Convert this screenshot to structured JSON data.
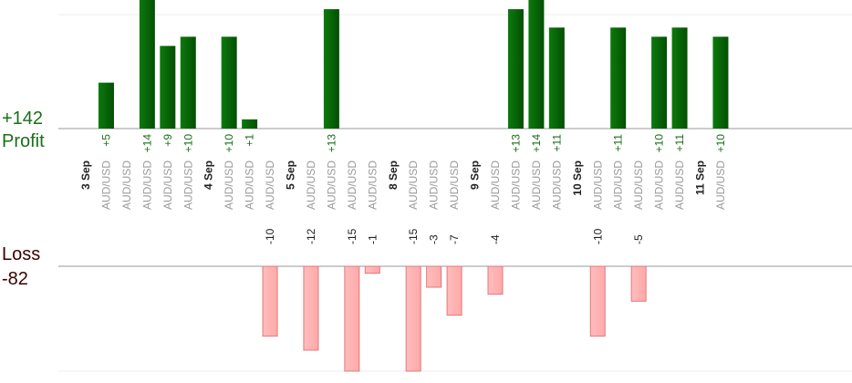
{
  "chart_data": {
    "type": "bar",
    "profit_label": "Profit",
    "loss_label": "Loss",
    "profit_total": "+142",
    "loss_total": "-82",
    "colors": {
      "profit": "#0b6a0b",
      "loss": "#ffb3b3",
      "loss_border": "#e07a7a",
      "profit_text": "#1a6e1a",
      "loss_text": "#4a0000"
    },
    "columns": [
      {
        "label": "3 Sep",
        "kind": "date"
      },
      {
        "label": "AUD/USD",
        "kind": "trade",
        "value": 5,
        "value_label": "+5"
      },
      {
        "label": "AUD/USD",
        "kind": "trade"
      },
      {
        "label": "AUD/USD",
        "kind": "trade",
        "value": 14,
        "value_label": "+14"
      },
      {
        "label": "AUD/USD",
        "kind": "trade",
        "value": 9,
        "value_label": "+9"
      },
      {
        "label": "AUD/USD",
        "kind": "trade",
        "value": 10,
        "value_label": "+10"
      },
      {
        "label": "4 Sep",
        "kind": "date"
      },
      {
        "label": "AUD/USD",
        "kind": "trade",
        "value": 10,
        "value_label": "+10"
      },
      {
        "label": "AUD/USD",
        "kind": "trade",
        "value": 1,
        "value_label": "+1"
      },
      {
        "label": "AUD/USD",
        "kind": "trade",
        "value": -10,
        "value_label": "-10"
      },
      {
        "label": "5 Sep",
        "kind": "date"
      },
      {
        "label": "AUD/USD",
        "kind": "trade",
        "value": -12,
        "value_label": "-12"
      },
      {
        "label": "AUD/USD",
        "kind": "trade",
        "value": 13,
        "value_label": "+13"
      },
      {
        "label": "AUD/USD",
        "kind": "trade",
        "value": -15,
        "value_label": "-15"
      },
      {
        "label": "AUD/USD",
        "kind": "trade",
        "value": -1,
        "value_label": "-1"
      },
      {
        "label": "8 Sep",
        "kind": "date"
      },
      {
        "label": "AUD/USD",
        "kind": "trade",
        "value": -15,
        "value_label": "-15"
      },
      {
        "label": "AUD/USD",
        "kind": "trade",
        "value": -3,
        "value_label": "-3"
      },
      {
        "label": "AUD/USD",
        "kind": "trade",
        "value": -7,
        "value_label": "-7"
      },
      {
        "label": "9 Sep",
        "kind": "date"
      },
      {
        "label": "AUD/USD",
        "kind": "trade",
        "value": -4,
        "value_label": "-4"
      },
      {
        "label": "AUD/USD",
        "kind": "trade",
        "value": 13,
        "value_label": "+13"
      },
      {
        "label": "AUD/USD",
        "kind": "trade",
        "value": 14,
        "value_label": "+14"
      },
      {
        "label": "AUD/USD",
        "kind": "trade",
        "value": 11,
        "value_label": "+11"
      },
      {
        "label": "10 Sep",
        "kind": "date"
      },
      {
        "label": "AUD/USD",
        "kind": "trade",
        "value": -10,
        "value_label": "-10"
      },
      {
        "label": "AUD/USD",
        "kind": "trade",
        "value": 11,
        "value_label": "+11"
      },
      {
        "label": "AUD/USD",
        "kind": "trade",
        "value": -5,
        "value_label": "-5"
      },
      {
        "label": "AUD/USD",
        "kind": "trade",
        "value": 10,
        "value_label": "+10"
      },
      {
        "label": "AUD/USD",
        "kind": "trade",
        "value": 11,
        "value_label": "+11"
      },
      {
        "label": "11 Sep",
        "kind": "date"
      },
      {
        "label": "AUD/USD",
        "kind": "trade",
        "value": 10,
        "value_label": "+10"
      }
    ],
    "profit_axis_max": 14,
    "loss_axis_max": 15
  }
}
